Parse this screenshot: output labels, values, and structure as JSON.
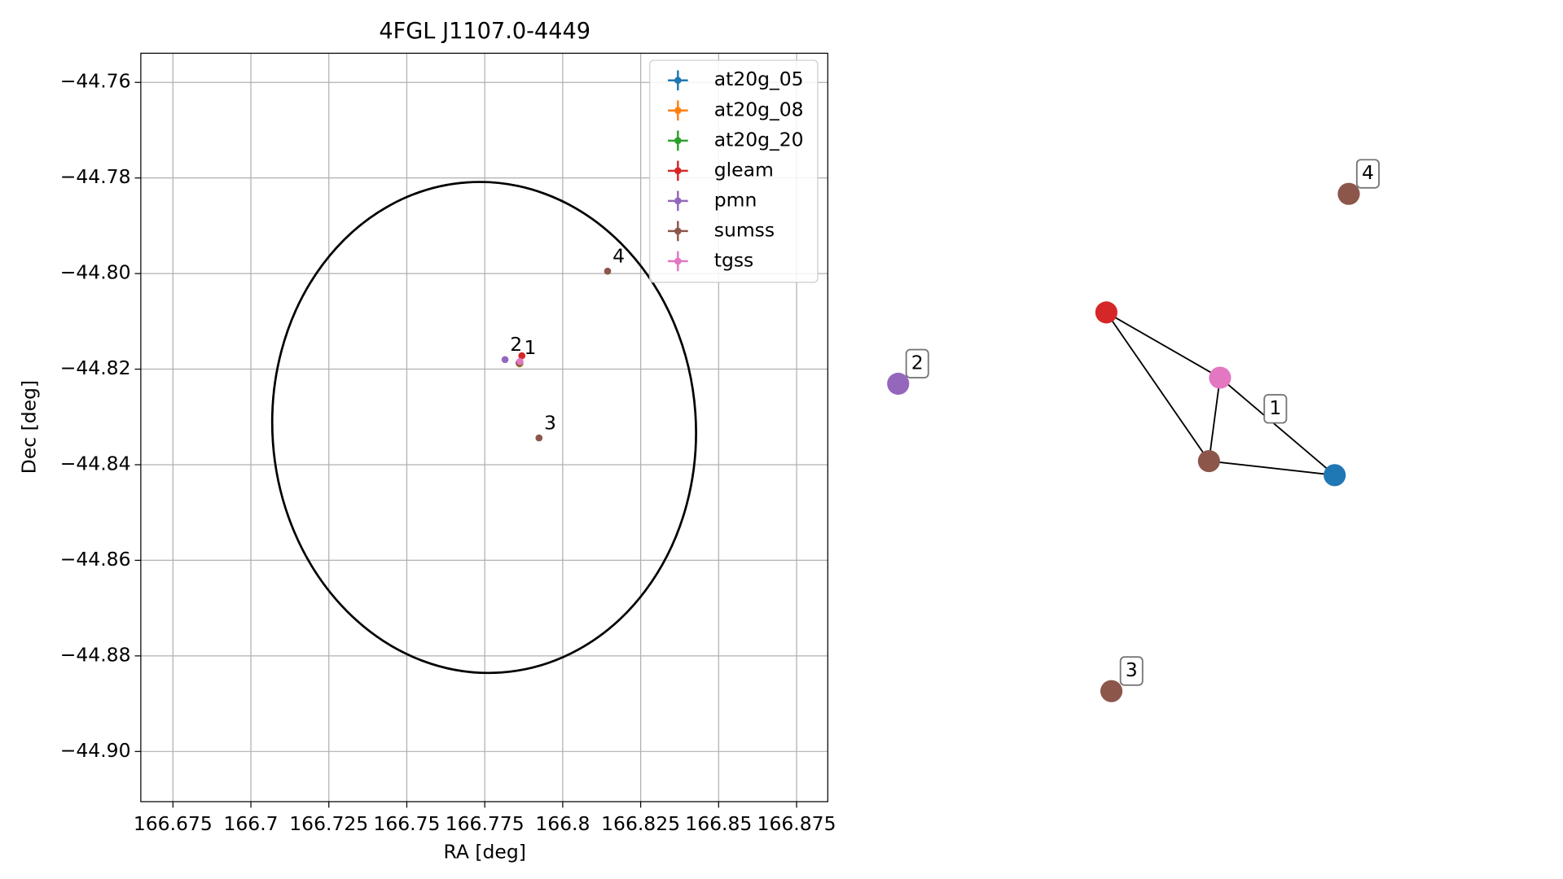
{
  "chart_data": [
    {
      "type": "scatter",
      "title": "4FGL J1107.0-4449",
      "x_label": "RA [deg]",
      "y_label": "Dec [deg]",
      "xlim": [
        166.6647,
        166.885
      ],
      "ylim": [
        -44.9105,
        -44.7539
      ],
      "xticks": [
        166.675,
        166.7,
        166.725,
        166.75,
        166.775,
        166.8,
        166.825,
        166.85,
        166.875
      ],
      "yticks": [
        {
          "value": -44.76,
          "label": "−44.76"
        },
        {
          "value": -44.78,
          "label": "−44.78"
        },
        {
          "value": -44.8,
          "label": "−44.80"
        },
        {
          "value": -44.82,
          "label": "−44.82"
        },
        {
          "value": -44.84,
          "label": "−44.84"
        },
        {
          "value": -44.86,
          "label": "−44.86"
        },
        {
          "value": -44.88,
          "label": "−44.88"
        },
        {
          "value": -44.9,
          "label": "−44.90"
        }
      ],
      "grid": true,
      "legend": "upper right",
      "series": [
        {
          "name": "at20g_05",
          "color": "#1f77b4",
          "x": [
            166.7863
          ],
          "values": [
            -44.8188
          ]
        },
        {
          "name": "at20g_08",
          "color": "#ff7f0e",
          "x": [
            166.7862
          ],
          "values": [
            -44.8189
          ]
        },
        {
          "name": "at20g_20",
          "color": "#2ca02c",
          "x": [
            166.7861
          ],
          "values": [
            -44.8188
          ]
        },
        {
          "name": "gleam",
          "color": "#d62728",
          "x": [
            166.7869
          ],
          "values": [
            -44.8172
          ]
        },
        {
          "name": "pmn",
          "color": "#9467bd",
          "x": [
            166.7815
          ],
          "values": [
            -44.818
          ]
        },
        {
          "name": "sumss",
          "color": "#8c564b",
          "x": [
            166.786,
            166.7924,
            166.8144
          ],
          "values": [
            -44.8187,
            -44.8344,
            -44.7995
          ]
        },
        {
          "name": "tgss",
          "color": "#e377c2",
          "x": [
            166.7863
          ],
          "values": [
            -44.8184
          ]
        }
      ],
      "ellipse": {
        "center": [
          166.7748,
          -44.8322
        ],
        "width": 0.1358,
        "height": 0.1028,
        "angle": -4,
        "color": "#000000"
      },
      "annotations": [
        {
          "text": "2",
          "x": 166.7815,
          "y": -44.818
        },
        {
          "text": "1",
          "x": 166.786,
          "y": -44.8187
        },
        {
          "text": "3",
          "x": 166.7924,
          "y": -44.8344
        },
        {
          "text": "4",
          "x": 166.8144,
          "y": -44.7995
        }
      ]
    },
    {
      "type": "network",
      "nodes": [
        {
          "color": "#8c564b"
        },
        {
          "color": "#d62728"
        },
        {
          "color": "#e377c2"
        },
        {
          "color": "#1f77b4"
        },
        {
          "color": "#9467bd"
        },
        {
          "color": "#8c564b"
        },
        {
          "color": "#8c564b"
        }
      ],
      "edges": [
        [
          1,
          2
        ],
        [
          1,
          0
        ],
        [
          2,
          0
        ],
        [
          2,
          3
        ],
        [
          0,
          3
        ]
      ],
      "labels": [
        "1",
        "2",
        "3",
        "4"
      ]
    }
  ]
}
